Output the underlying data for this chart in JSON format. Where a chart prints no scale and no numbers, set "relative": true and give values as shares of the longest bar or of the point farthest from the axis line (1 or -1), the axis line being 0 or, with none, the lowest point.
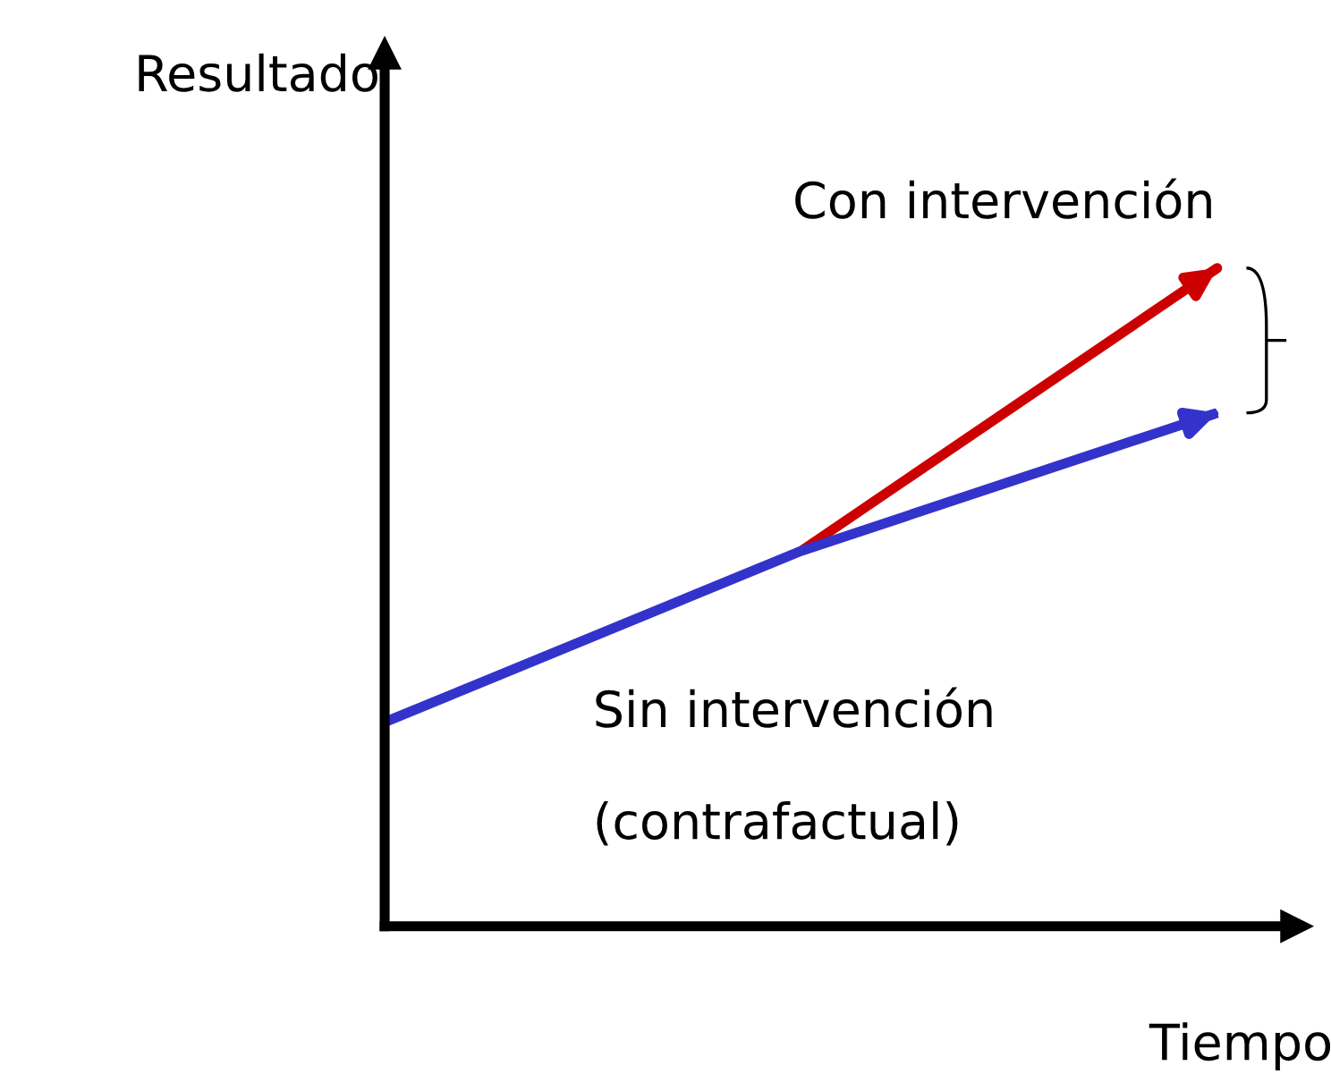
{
  "chart_data": {
    "type": "line",
    "relative": true,
    "xlabel": "Tiempo",
    "ylabel": "Resultado",
    "legend": false,
    "marker": "none",
    "line_style": "solid",
    "categories": [
      null,
      null,
      null
    ],
    "series": [
      {
        "name": "Con intervención",
        "color": "#cc0000",
        "values": [
          null,
          0.57,
          1.0
        ]
      },
      {
        "name": "Sin intervención",
        "color": "#3333cc",
        "values": [
          0.31,
          0.57,
          0.78
        ]
      }
    ],
    "annotations": [
      "(contrafactual)"
    ]
  }
}
